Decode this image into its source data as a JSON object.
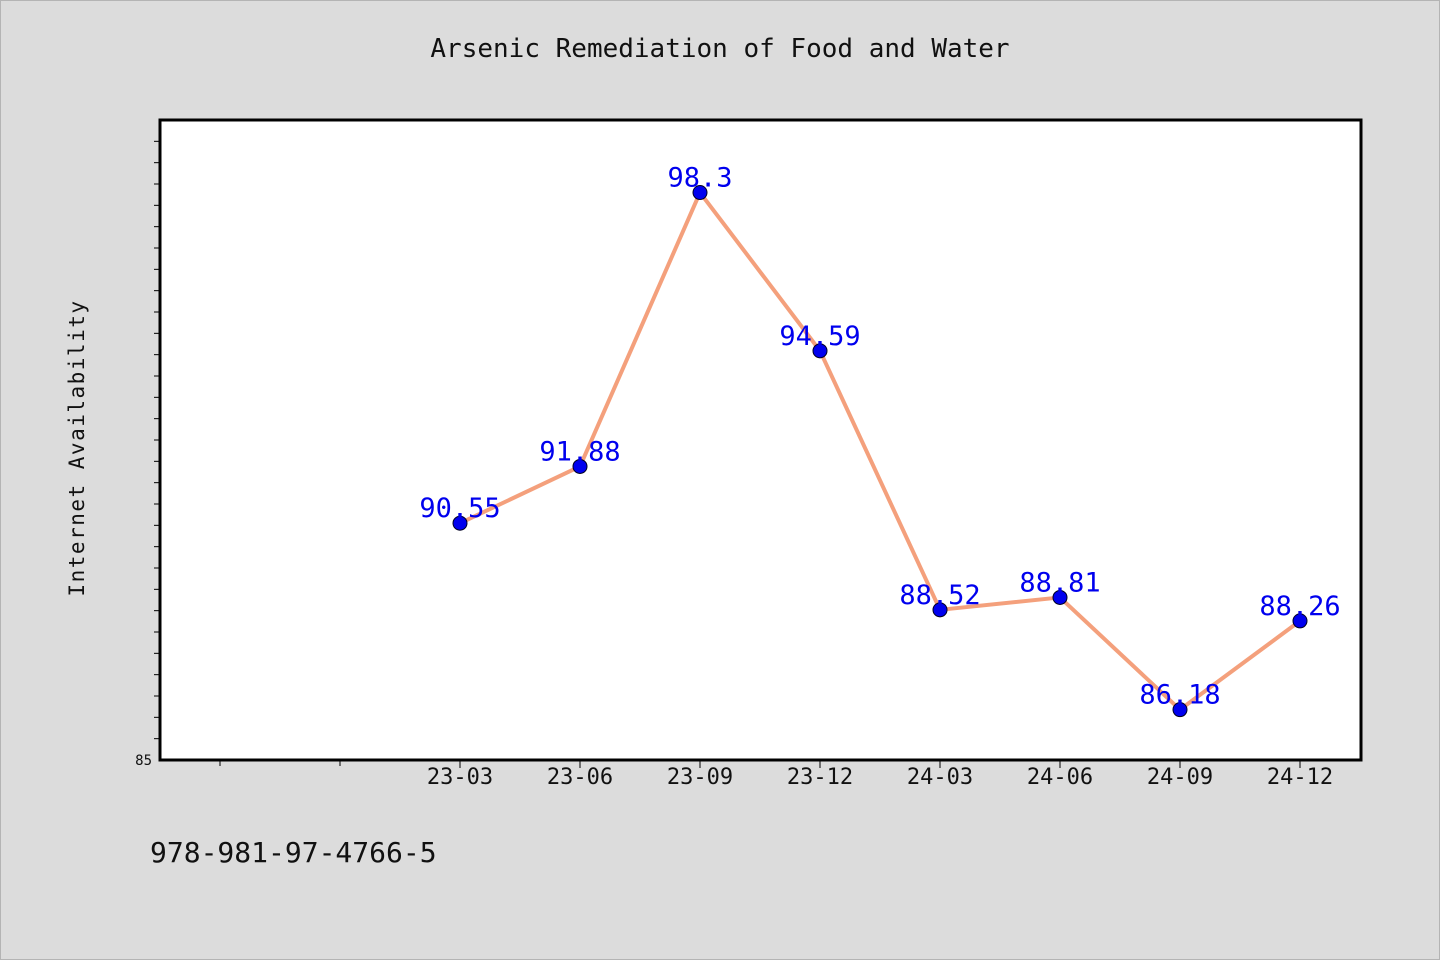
{
  "chart_data": {
    "type": "line",
    "title": "Arsenic Remediation of Food and Water",
    "xlabel": "",
    "ylabel": "Internet Availability",
    "categories": [
      "23-03",
      "23-06",
      "23-09",
      "23-12",
      "24-03",
      "24-06",
      "24-09",
      "24-12"
    ],
    "series": [
      {
        "values": [
          90.55,
          91.88,
          98.3,
          94.59,
          88.52,
          88.81,
          86.18,
          88.26
        ]
      }
    ],
    "ylim": [
      85,
      100
    ],
    "y_tick_labels": [
      "85"
    ],
    "data_labels": [
      "90.55",
      "91.88",
      "98.3",
      "94.59",
      "88.52",
      "88.81",
      "86.18",
      "88.26"
    ],
    "grid": false,
    "legend": "none",
    "colors": {
      "line": "#f4a07c",
      "marker": "#0000ee",
      "label": "#0000ee"
    }
  },
  "footer_text": "978-981-97-4766-5"
}
